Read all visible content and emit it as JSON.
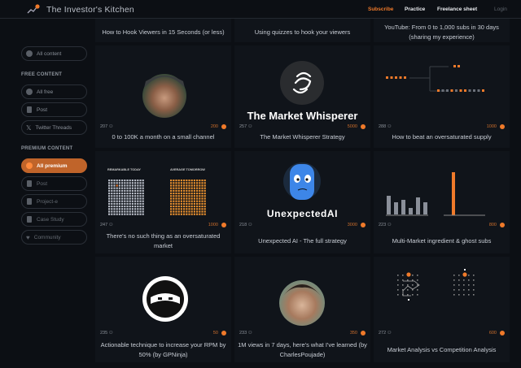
{
  "header": {
    "title": "The Investor's Kitchen",
    "nav": {
      "subscribe": "Subscribe",
      "practice": "Practice",
      "freelance": "Freelance sheet",
      "login": "Login"
    },
    "accent": "#f07a2a"
  },
  "sidebar": {
    "all_content": "All content",
    "free_heading": "FREE CONTENT",
    "free_items": [
      {
        "label": "All free",
        "icon": "circle-icon"
      },
      {
        "label": "Post",
        "icon": "document-icon"
      },
      {
        "label": "Twitter Threads",
        "icon": "x-icon"
      }
    ],
    "premium_heading": "PREMIUM CONTENT",
    "premium_items": [
      {
        "label": "All premium",
        "icon": "circle-icon",
        "active": true
      },
      {
        "label": "Post",
        "icon": "document-icon"
      },
      {
        "label": "Project-e",
        "icon": "document-icon"
      },
      {
        "label": "Case Study",
        "icon": "document-icon"
      },
      {
        "label": "Community",
        "icon": "heart-icon"
      }
    ]
  },
  "cards": [
    {
      "title": "How to Hook Viewers in 15 Seconds (or less)"
    },
    {
      "title": "Using quizzes to hook your viewers"
    },
    {
      "title": "YouTube: From 0 to 1,000 subs in 30 days (sharing my experience)"
    },
    {
      "title": "0 to 100K a month on a small channel",
      "members": "207",
      "points": "200"
    },
    {
      "title": "The Market Whisperer Strategy",
      "members": "257",
      "points": "5000",
      "thumb_text": "The Market Whisperer"
    },
    {
      "title": "How to beat an oversaturated supply",
      "members": "288",
      "points": "1000"
    },
    {
      "title": "There's no such thing as an oversaturated market",
      "members": "247",
      "points": "1000",
      "thumb_labels": [
        "REMARKABLE TODAY",
        "AVERAGE TOMORROW"
      ]
    },
    {
      "title": "Unexpected AI - The full strategy",
      "members": "218",
      "points": "3000",
      "thumb_text": "UnexpectedAI"
    },
    {
      "title": "Multi-Market ingredient & ghost subs",
      "members": "223",
      "points": "800"
    },
    {
      "title": "Actionable technique to increase your RPM by 50% (by GPNinja)",
      "members": "235",
      "points": "50"
    },
    {
      "title": "1M views in 7 days, here's what I've learned (by CharlesPoujade)",
      "members": "233",
      "points": "350"
    },
    {
      "title": "Market Analysis vs Competition Analysis",
      "members": "272",
      "points": "600"
    }
  ]
}
